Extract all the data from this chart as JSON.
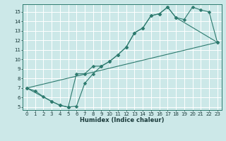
{
  "xlabel": "Humidex (Indice chaleur)",
  "bg_color": "#cce8e8",
  "grid_color": "#ffffff",
  "line_color": "#2d7a6e",
  "xlim": [
    -0.5,
    23.5
  ],
  "ylim": [
    4.7,
    15.8
  ],
  "xticks": [
    0,
    1,
    2,
    3,
    4,
    5,
    6,
    7,
    8,
    9,
    10,
    11,
    12,
    13,
    14,
    15,
    16,
    17,
    18,
    19,
    20,
    21,
    22,
    23
  ],
  "yticks": [
    5,
    6,
    7,
    8,
    9,
    10,
    11,
    12,
    13,
    14,
    15
  ],
  "line1_x": [
    0,
    1,
    2,
    3,
    4,
    5,
    6,
    7,
    8,
    9,
    10,
    11,
    12,
    13,
    14,
    15,
    16,
    17,
    18,
    19,
    20,
    21,
    22,
    23
  ],
  "line1_y": [
    7.0,
    6.7,
    6.1,
    5.6,
    5.2,
    5.0,
    5.1,
    7.5,
    8.5,
    9.3,
    9.8,
    10.5,
    11.3,
    12.8,
    13.3,
    14.6,
    14.8,
    15.5,
    14.4,
    14.2,
    15.5,
    15.2,
    15.0,
    11.8
  ],
  "line2_x": [
    0,
    3,
    4,
    5,
    6,
    7,
    8,
    9,
    10,
    11,
    12,
    13,
    14,
    15,
    16,
    17,
    18,
    23
  ],
  "line2_y": [
    7.0,
    5.6,
    5.2,
    5.0,
    8.5,
    8.5,
    9.3,
    9.3,
    9.8,
    10.5,
    11.3,
    12.8,
    13.3,
    14.6,
    14.8,
    15.5,
    14.4,
    11.8
  ],
  "line3_x": [
    0,
    23
  ],
  "line3_y": [
    7.0,
    11.8
  ],
  "marker_size": 2.5,
  "tick_fontsize": 5.0,
  "xlabel_fontsize": 6.0
}
